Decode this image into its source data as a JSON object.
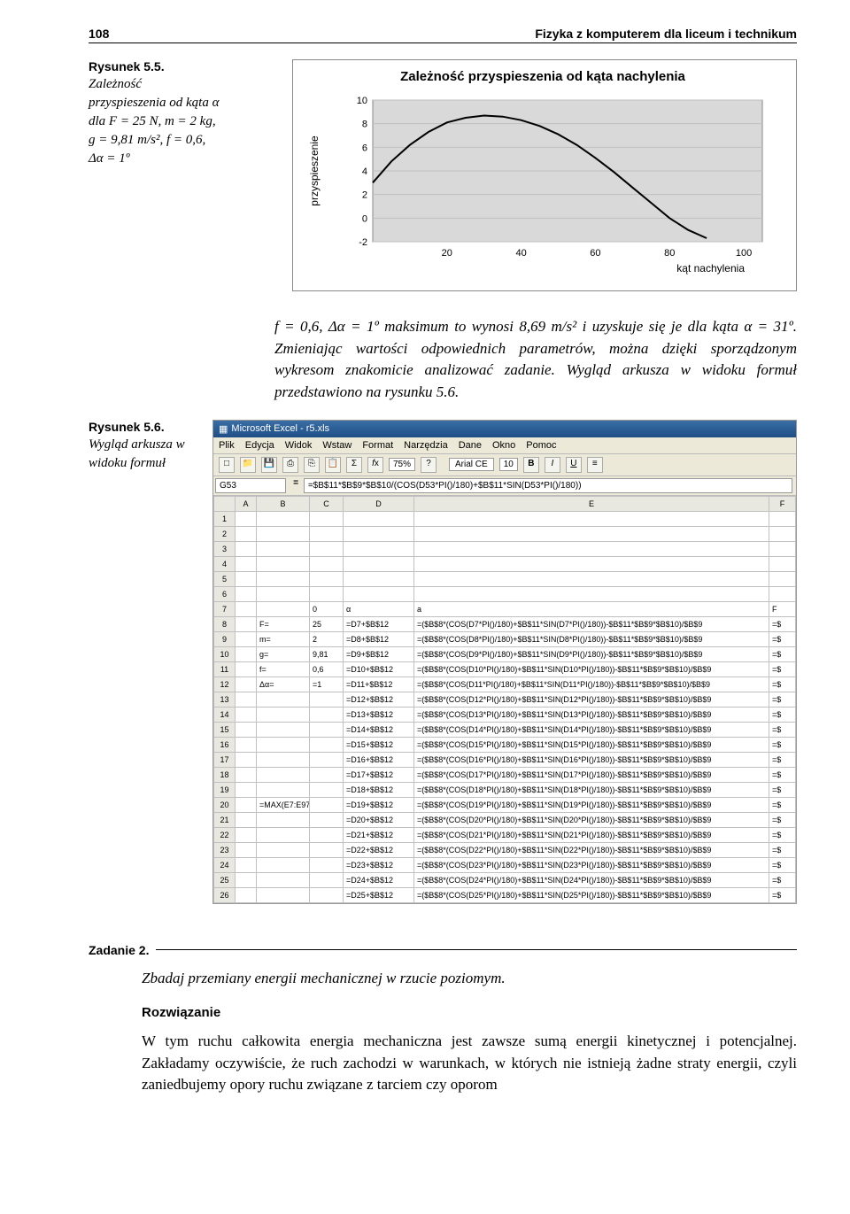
{
  "header": {
    "page_num": "108",
    "title": "Fizyka z komputerem dla liceum i technikum"
  },
  "fig55": {
    "label": "Rysunek 5.5.",
    "desc_lines": [
      "Zależność",
      "przyspieszenia od kąta α",
      "dla F = 25 N, m = 2 kg,",
      "g = 9,81 m/s², f = 0,6,",
      "Δα = 1º"
    ]
  },
  "chart": {
    "title": "Zależność przyspieszenia od kąta nachylenia",
    "ylabel": "przyspieszenie",
    "xlabel": "kąt nachylenia",
    "xlim": [
      0,
      105
    ],
    "ylim": [
      -2,
      10
    ],
    "yticks": [
      -2,
      0,
      2,
      4,
      6,
      8,
      10
    ],
    "xticks": [
      20,
      40,
      60,
      80,
      100
    ],
    "series_color": "#000000",
    "grid_color": "#bfbfbf",
    "background_color": "#d9d9d9",
    "plot_bg": "#d9d9d9",
    "line_width": 2,
    "curve": [
      [
        0,
        3.0
      ],
      [
        5,
        4.8
      ],
      [
        10,
        6.2
      ],
      [
        15,
        7.3
      ],
      [
        20,
        8.1
      ],
      [
        25,
        8.5
      ],
      [
        30,
        8.69
      ],
      [
        35,
        8.6
      ],
      [
        40,
        8.3
      ],
      [
        45,
        7.8
      ],
      [
        50,
        7.1
      ],
      [
        55,
        6.2
      ],
      [
        60,
        5.1
      ],
      [
        65,
        3.9
      ],
      [
        70,
        2.6
      ],
      [
        75,
        1.3
      ],
      [
        80,
        0.0
      ],
      [
        85,
        -1.0
      ],
      [
        90,
        -1.7
      ]
    ]
  },
  "para": "f = 0,6, Δα = 1º maksimum to wynosi 8,69 m/s² i uzyskuje się je dla kąta α = 31º. Zmieniając wartości odpowiednich parametrów, można dzięki sporządzonym wykresom znakomicie analizować zadanie. Wygląd arkusza w widoku formuł przedstawiono na rysunku 5.6.",
  "fig56": {
    "label": "Rysunek 5.6.",
    "desc": "Wygląd arkusza w widoku formuł"
  },
  "excel": {
    "title": "Microsoft Excel - r5.xls",
    "menu": [
      "Plik",
      "Edycja",
      "Widok",
      "Wstaw",
      "Format",
      "Narzędzia",
      "Dane",
      "Okno",
      "Pomoc"
    ],
    "toolbar_zoom": "75%",
    "toolbar_font": "Arial CE",
    "toolbar_size": "10",
    "name_box": "G53",
    "formula": "=$B$11*$B$9*$B$10/(COS(D53*PI()/180)+$B$11*SIN(D53*PI()/180))",
    "cols": [
      "",
      "A",
      "B",
      "C",
      "D",
      "E",
      "F"
    ],
    "rows": [
      {
        "n": "1",
        "A": "",
        "B": "",
        "C": "",
        "D": "",
        "E": "",
        "F": ""
      },
      {
        "n": "2",
        "A": "",
        "B": "",
        "C": "",
        "D": "",
        "E": "",
        "F": ""
      },
      {
        "n": "3",
        "A": "",
        "B": "",
        "C": "",
        "D": "",
        "E": "",
        "F": ""
      },
      {
        "n": "4",
        "A": "",
        "B": "",
        "C": "",
        "D": "",
        "E": "",
        "F": ""
      },
      {
        "n": "5",
        "A": "",
        "B": "",
        "C": "",
        "D": "",
        "E": "",
        "F": ""
      },
      {
        "n": "6",
        "A": "",
        "B": "",
        "C": "",
        "D": "",
        "E": "",
        "F": ""
      },
      {
        "n": "7",
        "A": "",
        "B": "",
        "C": "0",
        "D": "α",
        "E": "a",
        "F": "F"
      },
      {
        "n": "8",
        "A": "",
        "B": "F=",
        "C": "25",
        "D": "=D7+$B$12",
        "E": "=($B$8*(COS(D7*PI()/180)+$B$11*SIN(D7*PI()/180))-$B$11*$B$9*$B$10)/$B$9",
        "F": "=$"
      },
      {
        "n": "9",
        "A": "",
        "B": "m=",
        "C": "2",
        "D": "=D8+$B$12",
        "E": "=($B$8*(COS(D8*PI()/180)+$B$11*SIN(D8*PI()/180))-$B$11*$B$9*$B$10)/$B$9",
        "F": "=$"
      },
      {
        "n": "10",
        "A": "",
        "B": "g=",
        "C": "9,81",
        "D": "=D9+$B$12",
        "E": "=($B$8*(COS(D9*PI()/180)+$B$11*SIN(D9*PI()/180))-$B$11*$B$9*$B$10)/$B$9",
        "F": "=$"
      },
      {
        "n": "11",
        "A": "",
        "B": "f=",
        "C": "0,6",
        "D": "=D10+$B$12",
        "E": "=($B$8*(COS(D10*PI()/180)+$B$11*SIN(D10*PI()/180))-$B$11*$B$9*$B$10)/$B$9",
        "F": "=$"
      },
      {
        "n": "12",
        "A": "",
        "B": "Δα=",
        "C": "=1",
        "D": "=D11+$B$12",
        "E": "=($B$8*(COS(D11*PI()/180)+$B$11*SIN(D11*PI()/180))-$B$11*$B$9*$B$10)/$B$9",
        "F": "=$"
      },
      {
        "n": "13",
        "A": "",
        "B": "",
        "C": "",
        "D": "=D12+$B$12",
        "E": "=($B$8*(COS(D12*PI()/180)+$B$11*SIN(D12*PI()/180))-$B$11*$B$9*$B$10)/$B$9",
        "F": "=$"
      },
      {
        "n": "14",
        "A": "",
        "B": "",
        "C": "",
        "D": "=D13+$B$12",
        "E": "=($B$8*(COS(D13*PI()/180)+$B$11*SIN(D13*PI()/180))-$B$11*$B$9*$B$10)/$B$9",
        "F": "=$"
      },
      {
        "n": "15",
        "A": "",
        "B": "",
        "C": "",
        "D": "=D14+$B$12",
        "E": "=($B$8*(COS(D14*PI()/180)+$B$11*SIN(D14*PI()/180))-$B$11*$B$9*$B$10)/$B$9",
        "F": "=$"
      },
      {
        "n": "16",
        "A": "",
        "B": "",
        "C": "",
        "D": "=D15+$B$12",
        "E": "=($B$8*(COS(D15*PI()/180)+$B$11*SIN(D15*PI()/180))-$B$11*$B$9*$B$10)/$B$9",
        "F": "=$"
      },
      {
        "n": "17",
        "A": "",
        "B": "",
        "C": "",
        "D": "=D16+$B$12",
        "E": "=($B$8*(COS(D16*PI()/180)+$B$11*SIN(D16*PI()/180))-$B$11*$B$9*$B$10)/$B$9",
        "F": "=$"
      },
      {
        "n": "18",
        "A": "",
        "B": "",
        "C": "",
        "D": "=D17+$B$12",
        "E": "=($B$8*(COS(D17*PI()/180)+$B$11*SIN(D17*PI()/180))-$B$11*$B$9*$B$10)/$B$9",
        "F": "=$"
      },
      {
        "n": "19",
        "A": "",
        "B": "",
        "C": "",
        "D": "=D18+$B$12",
        "E": "=($B$8*(COS(D18*PI()/180)+$B$11*SIN(D18*PI()/180))-$B$11*$B$9*$B$10)/$B$9",
        "F": "=$"
      },
      {
        "n": "20",
        "A": "",
        "B": "=MAX(E7:E97)",
        "C": "",
        "D": "=D19+$B$12",
        "E": "=($B$8*(COS(D19*PI()/180)+$B$11*SIN(D19*PI()/180))-$B$11*$B$9*$B$10)/$B$9",
        "F": "=$"
      },
      {
        "n": "21",
        "A": "",
        "B": "",
        "C": "",
        "D": "=D20+$B$12",
        "E": "=($B$8*(COS(D20*PI()/180)+$B$11*SIN(D20*PI()/180))-$B$11*$B$9*$B$10)/$B$9",
        "F": "=$"
      },
      {
        "n": "22",
        "A": "",
        "B": "",
        "C": "",
        "D": "=D21+$B$12",
        "E": "=($B$8*(COS(D21*PI()/180)+$B$11*SIN(D21*PI()/180))-$B$11*$B$9*$B$10)/$B$9",
        "F": "=$"
      },
      {
        "n": "23",
        "A": "",
        "B": "",
        "C": "",
        "D": "=D22+$B$12",
        "E": "=($B$8*(COS(D22*PI()/180)+$B$11*SIN(D22*PI()/180))-$B$11*$B$9*$B$10)/$B$9",
        "F": "=$"
      },
      {
        "n": "24",
        "A": "",
        "B": "",
        "C": "",
        "D": "=D23+$B$12",
        "E": "=($B$8*(COS(D23*PI()/180)+$B$11*SIN(D23*PI()/180))-$B$11*$B$9*$B$10)/$B$9",
        "F": "=$"
      },
      {
        "n": "25",
        "A": "",
        "B": "",
        "C": "",
        "D": "=D24+$B$12",
        "E": "=($B$8*(COS(D24*PI()/180)+$B$11*SIN(D24*PI()/180))-$B$11*$B$9*$B$10)/$B$9",
        "F": "=$"
      },
      {
        "n": "26",
        "A": "",
        "B": "",
        "C": "",
        "D": "=D25+$B$12",
        "E": "=($B$8*(COS(D25*PI()/180)+$B$11*SIN(D25*PI()/180))-$B$11*$B$9*$B$10)/$B$9",
        "F": "=$"
      }
    ]
  },
  "zad2": {
    "label": "Zadanie 2.",
    "task": "Zbadaj przemiany energii mechanicznej w rzucie poziomym.",
    "roz": "Rozwiązanie",
    "body": "W tym ruchu całkowita energia mechaniczna jest zawsze sumą energii kinetycznej i potencjalnej. Zakładamy oczywiście, że ruch zachodzi w warunkach, w których nie istnieją żadne straty energii, czyli zaniedbujemy opory ruchu związane z tarciem czy oporom"
  }
}
